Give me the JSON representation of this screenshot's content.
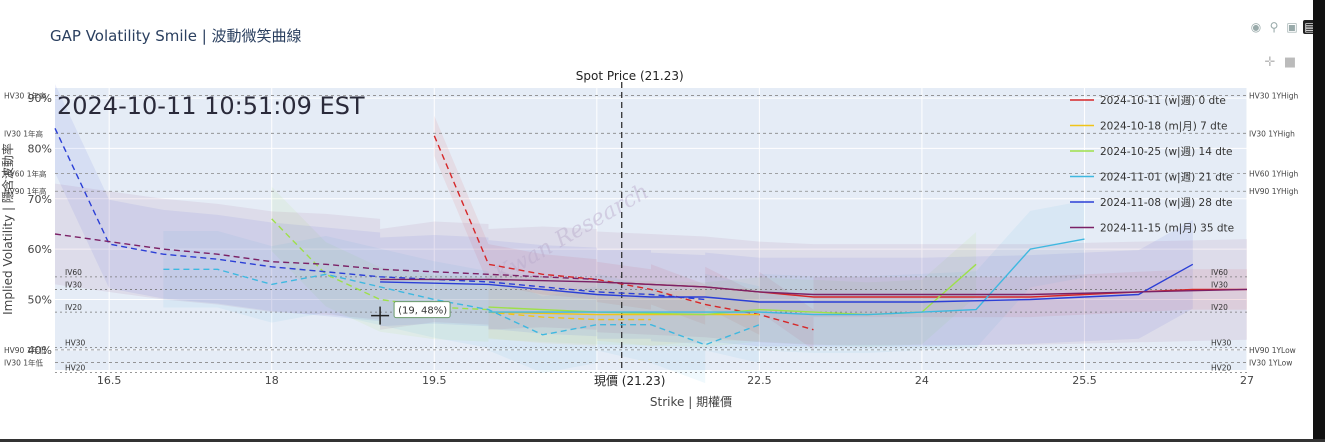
{
  "page_title": "GAP Volatility Smile | 波動微笑曲線",
  "icons": [
    "camera-icon",
    "zoom-icon",
    "autoscale-icon",
    "bar-chart-icon",
    "pan-icon",
    "reset-icon"
  ],
  "chart_data": {
    "type": "line",
    "timestamp": "2024-10-11 10:51:09 EST",
    "spot": {
      "label": "Spot Price (21.23)",
      "bottom_label": "現價 (21.23)",
      "value": 21.23
    },
    "xlabel": "Strike | 期權價",
    "ylabel": "Implied Volatility | 隱含波動率",
    "xlim": [
      16,
      27
    ],
    "ylim": [
      36,
      92
    ],
    "xticks": [
      16.5,
      18,
      19.5,
      21,
      22.5,
      24,
      25.5,
      27
    ],
    "xtick_labels": [
      "16.5",
      "18",
      "19.5",
      "",
      "22.5",
      "24",
      "25.5",
      "27"
    ],
    "yticks": [
      40,
      50,
      60,
      70,
      80,
      90
    ],
    "ytick_labels": [
      "40%",
      "50%",
      "60%",
      "70%",
      "80%",
      "90%"
    ],
    "grid": true,
    "legend_position": "top-right",
    "watermark": "Kwan Research",
    "crosshair": {
      "x": 19,
      "y": 48,
      "label": "(19, 48%)"
    },
    "ref_lines_left": [
      {
        "label": "HV30 1年高",
        "y": 90.5
      },
      {
        "label": "IV30 1年高",
        "y": 83
      },
      {
        "label": "HV60 1年高",
        "y": 75
      },
      {
        "label": "HV90 1年高",
        "y": 71.5
      },
      {
        "label": "HV90 1年低",
        "y": 40
      },
      {
        "label": "IV30 1年低",
        "y": 37.5
      }
    ],
    "ref_lines_right": [
      {
        "label": "HV30 1YHigh",
        "y": 90.5
      },
      {
        "label": "IV30 1YHigh",
        "y": 83
      },
      {
        "label": "HV60 1YHigh",
        "y": 75
      },
      {
        "label": "HV90 1YHigh",
        "y": 71.5
      },
      {
        "label": "HV90 1YLow",
        "y": 40
      },
      {
        "label": "IV30 1YLow",
        "y": 37.5
      }
    ],
    "hv_lines": [
      {
        "label": "IV60",
        "y": 54.5
      },
      {
        "label": "IV30",
        "y": 52
      },
      {
        "label": "IV20",
        "y": 47.5
      },
      {
        "label": "HV30",
        "y": 40.5
      },
      {
        "label": "HV20",
        "y": 35.5
      }
    ],
    "series": [
      {
        "name": "2024-10-11 (w|週) 0 dte",
        "color": "#d62728",
        "calls": [
          [
            21,
            53.5
          ],
          [
            21.5,
            53
          ],
          [
            22,
            52.5
          ],
          [
            22.5,
            51.5
          ],
          [
            23,
            50.5
          ],
          [
            23.5,
            50.5
          ],
          [
            24,
            50.5
          ],
          [
            24.5,
            50.5
          ],
          [
            25,
            50.5
          ],
          [
            25.5,
            51
          ],
          [
            26,
            51.5
          ],
          [
            26.5,
            52
          ],
          [
            27,
            52
          ]
        ],
        "puts": [
          [
            19.5,
            82.5
          ],
          [
            20,
            57
          ],
          [
            20.5,
            55
          ],
          [
            21,
            54
          ],
          [
            21.5,
            52
          ],
          [
            22,
            49
          ],
          [
            22.5,
            47
          ],
          [
            23,
            44
          ]
        ]
      },
      {
        "name": "2024-10-18 (m|月) 7 dte",
        "color": "#f0c419",
        "calls": [
          [
            20,
            47.5
          ],
          [
            21,
            47
          ],
          [
            22,
            47
          ],
          [
            22.5,
            47
          ]
        ],
        "puts": [
          [
            20,
            47.5
          ],
          [
            20.5,
            46.5
          ],
          [
            21,
            46
          ],
          [
            21.5,
            46
          ]
        ]
      },
      {
        "name": "2024-10-25 (w|週) 14 dte",
        "color": "#9ee04a",
        "calls": [
          [
            20,
            48.5
          ],
          [
            21,
            47.5
          ],
          [
            22,
            47
          ],
          [
            22.5,
            48
          ],
          [
            23,
            47.5
          ],
          [
            23.5,
            47
          ],
          [
            24,
            47.5
          ],
          [
            24.5,
            57
          ]
        ],
        "puts": [
          [
            18,
            66
          ],
          [
            18.5,
            55
          ],
          [
            19,
            50
          ],
          [
            19.5,
            48.5
          ],
          [
            20,
            48
          ]
        ]
      },
      {
        "name": "2024-11-01 (w|週) 21 dte",
        "color": "#3fb8e0",
        "calls": [
          [
            20,
            47.5
          ],
          [
            21,
            47.5
          ],
          [
            22,
            47.5
          ],
          [
            22.5,
            47.5
          ],
          [
            23,
            47
          ],
          [
            23.5,
            47
          ],
          [
            24,
            47.5
          ],
          [
            24.5,
            48
          ],
          [
            25,
            60
          ],
          [
            25.5,
            62
          ]
        ],
        "puts": [
          [
            17,
            56
          ],
          [
            17.5,
            56
          ],
          [
            18,
            53
          ],
          [
            18.5,
            55
          ],
          [
            19,
            52.5
          ],
          [
            19.5,
            50
          ],
          [
            20,
            48
          ],
          [
            20.5,
            43
          ],
          [
            21,
            45
          ],
          [
            21.5,
            45
          ],
          [
            22,
            41
          ],
          [
            22.5,
            45
          ]
        ]
      },
      {
        "name": "2024-11-08 (w|週) 28 dte",
        "color": "#2b3fd6",
        "calls": [
          [
            19,
            53.5
          ],
          [
            20,
            53
          ],
          [
            20.5,
            52
          ],
          [
            21,
            51
          ],
          [
            21.5,
            50.5
          ],
          [
            22,
            50.5
          ],
          [
            22.5,
            49.5
          ],
          [
            23,
            49.5
          ],
          [
            24,
            49.5
          ],
          [
            25,
            50
          ],
          [
            25.5,
            50.5
          ],
          [
            26,
            51
          ],
          [
            26.5,
            57
          ]
        ],
        "puts": [
          [
            16,
            84
          ],
          [
            16.5,
            61
          ],
          [
            17,
            59
          ],
          [
            17.5,
            58
          ],
          [
            18,
            56.5
          ],
          [
            18.5,
            55.5
          ],
          [
            19,
            54.5
          ],
          [
            19.5,
            54
          ],
          [
            20,
            53.5
          ],
          [
            21,
            51.5
          ],
          [
            21.5,
            51
          ],
          [
            22,
            50
          ]
        ]
      },
      {
        "name": "2024-11-15 (m|月) 35 dte",
        "color": "#7b2166",
        "calls": [
          [
            19,
            54
          ],
          [
            20,
            54
          ],
          [
            21,
            53.5
          ],
          [
            21.5,
            53
          ],
          [
            22,
            52.5
          ],
          [
            22.5,
            51.5
          ],
          [
            23,
            51
          ],
          [
            24,
            51
          ],
          [
            25,
            51
          ],
          [
            26,
            51.5
          ],
          [
            27,
            52
          ]
        ],
        "puts": [
          [
            16,
            63
          ],
          [
            16.5,
            61.5
          ],
          [
            17,
            60
          ],
          [
            17.5,
            59
          ],
          [
            18,
            57.5
          ],
          [
            18.5,
            57
          ],
          [
            19,
            56
          ],
          [
            19.5,
            55.5
          ],
          [
            20,
            55
          ],
          [
            20.5,
            54.5
          ],
          [
            21,
            54
          ]
        ]
      }
    ]
  }
}
